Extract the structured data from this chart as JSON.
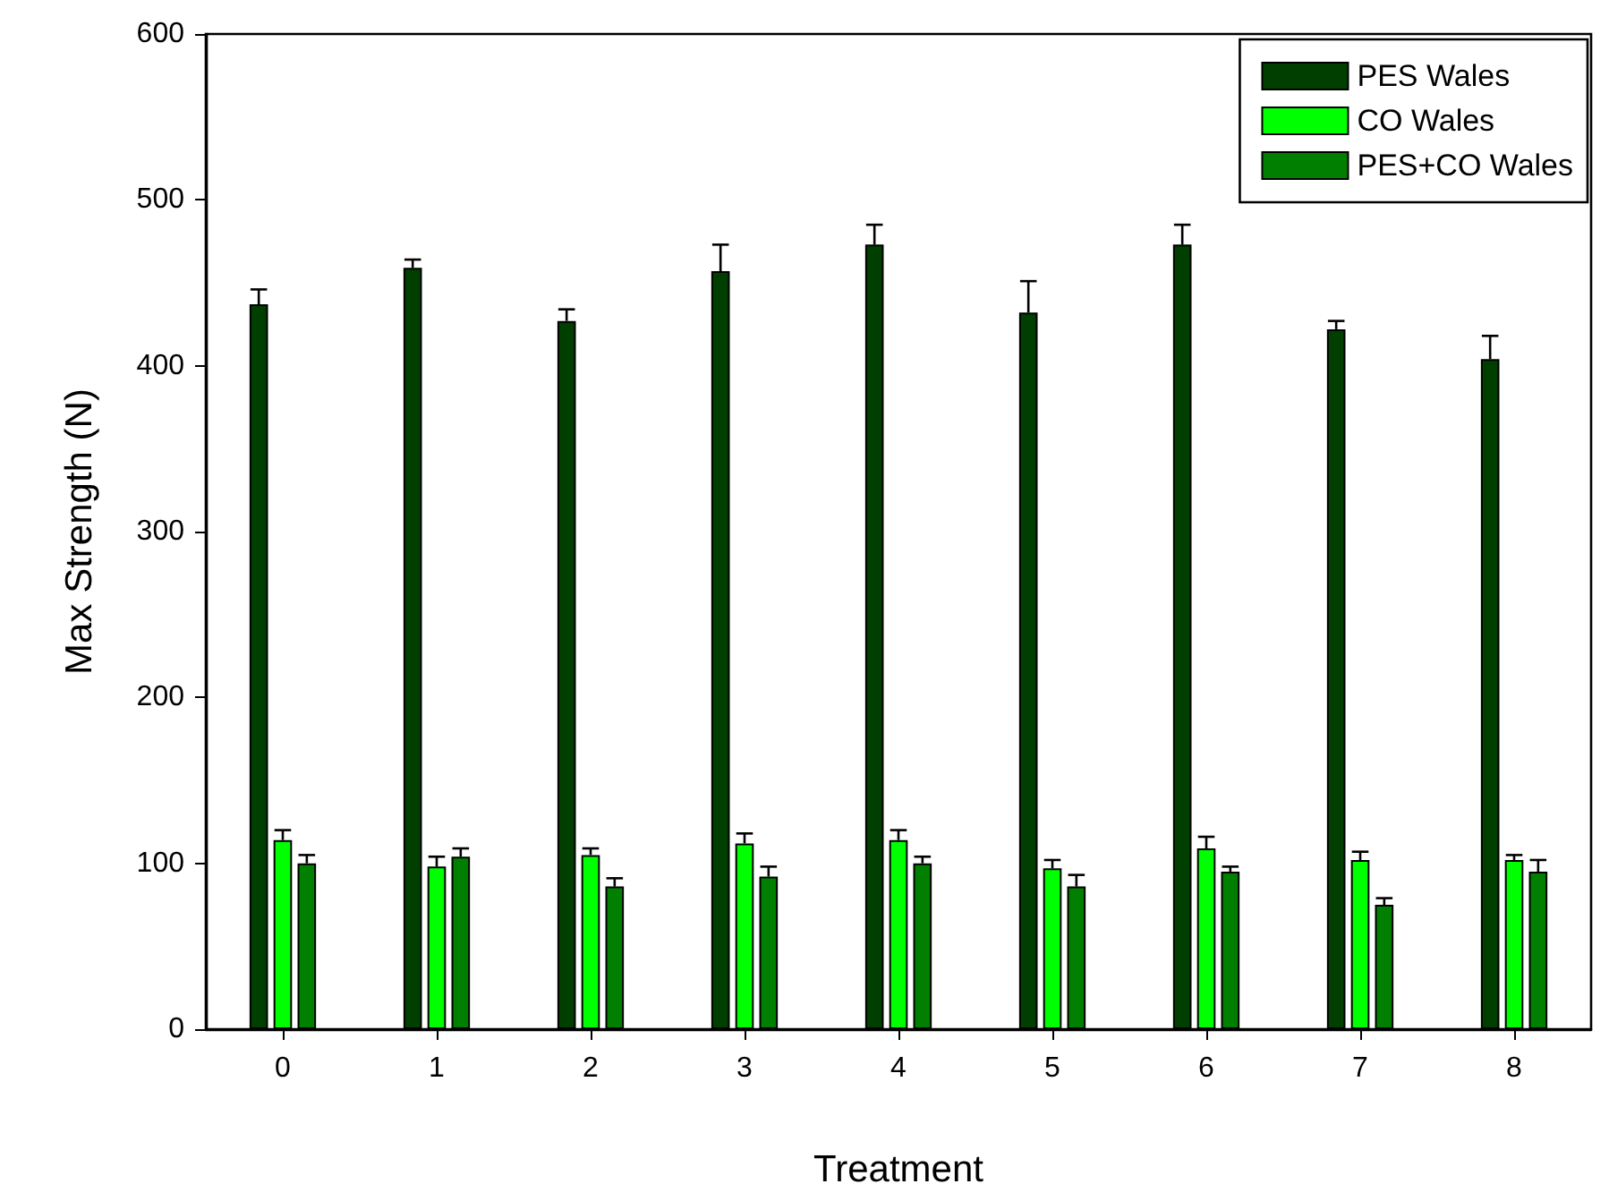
{
  "chart_data": {
    "type": "bar",
    "xlabel": "Treatment",
    "ylabel": "Max Strength (N)",
    "categories": [
      "0",
      "1",
      "2",
      "3",
      "4",
      "5",
      "6",
      "7",
      "8"
    ],
    "series": [
      {
        "name": "PES Wales",
        "color": "#003f00",
        "values": [
          437,
          459,
          427,
          457,
          473,
          432,
          473,
          422,
          404
        ],
        "errors": [
          [
            437,
            446
          ],
          [
            459,
            464
          ],
          [
            427,
            434
          ],
          [
            457,
            473
          ],
          [
            473,
            485
          ],
          [
            432,
            451
          ],
          [
            473,
            485
          ],
          [
            422,
            427
          ],
          [
            404,
            418
          ]
        ]
      },
      {
        "name": "CO Wales",
        "color": "#00ff00",
        "values": [
          114,
          98,
          105,
          112,
          114,
          97,
          109,
          102,
          102
        ],
        "errors": [
          [
            114,
            120
          ],
          [
            98,
            104
          ],
          [
            105,
            109
          ],
          [
            112,
            118
          ],
          [
            114,
            120
          ],
          [
            97,
            102
          ],
          [
            109,
            116
          ],
          [
            102,
            107
          ],
          [
            102,
            105
          ]
        ]
      },
      {
        "name": "PES+CO Wales",
        "color": "#007f00",
        "values": [
          100,
          104,
          86,
          92,
          100,
          86,
          95,
          75,
          95
        ],
        "errors": [
          [
            100,
            105
          ],
          [
            104,
            109
          ],
          [
            86,
            91
          ],
          [
            92,
            98
          ],
          [
            100,
            104
          ],
          [
            86,
            93
          ],
          [
            95,
            98
          ],
          [
            75,
            79
          ],
          [
            95,
            102
          ]
        ]
      }
    ],
    "ylim": [
      0,
      600
    ],
    "yticks": [
      0,
      100,
      200,
      300,
      400,
      500,
      600
    ],
    "grid": false,
    "legend": "top right"
  }
}
